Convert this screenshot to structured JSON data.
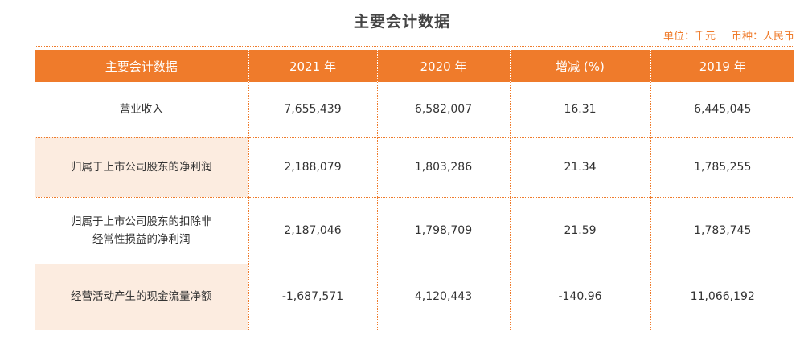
{
  "title": "主要会计数据",
  "unit": {
    "unit_label": "单位：千元",
    "currency_label": "币种：人民币"
  },
  "table": {
    "headers": [
      "主要会计数据",
      "2021 年",
      "2020 年",
      "增减 (%)",
      "2019 年"
    ],
    "rows": [
      {
        "label_lines": [
          "营业收入"
        ],
        "values": [
          "7,655,439",
          "6,582,007",
          "16.31",
          "6,445,045"
        ],
        "shaded": false
      },
      {
        "label_lines": [
          "归属于上市公司股东的净利润"
        ],
        "values": [
          "2,188,079",
          "1,803,286",
          "21.34",
          "1,785,255"
        ],
        "shaded": true
      },
      {
        "label_lines": [
          "归属于上市公司股东的扣除非",
          "经常性损益的净利润"
        ],
        "values": [
          "2,187,046",
          "1,798,709",
          "21.59",
          "1,783,745"
        ],
        "shaded": false
      },
      {
        "label_lines": [
          "经营活动产生的现金流量净额"
        ],
        "values": [
          "-1,687,571",
          "4,120,443",
          "-140.96",
          "11,066,192"
        ],
        "shaded": true
      }
    ]
  },
  "colors": {
    "accent": "#ef7b2b",
    "row_shade": "#fcece0"
  }
}
